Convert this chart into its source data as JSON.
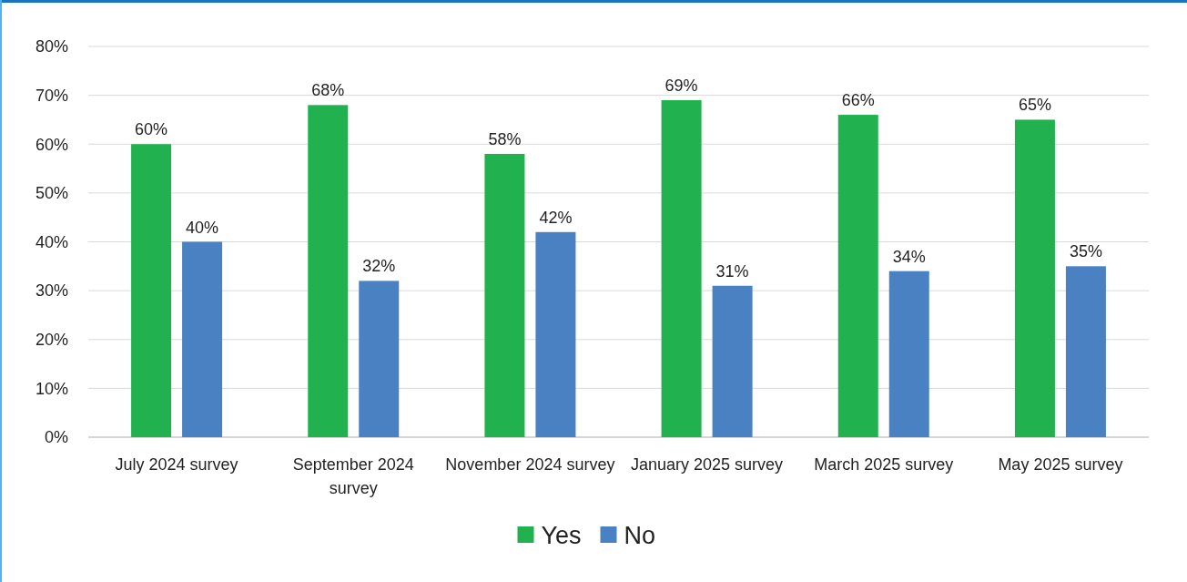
{
  "chart_data": {
    "type": "bar",
    "categories": [
      "July 2024 survey",
      "September 2024 survey",
      "November 2024 survey",
      "January 2025 survey",
      "March 2025 survey",
      "May 2025 survey"
    ],
    "series": [
      {
        "name": "Yes",
        "color": "#21b14e",
        "values": [
          60,
          68,
          58,
          69,
          66,
          65
        ],
        "value_labels": [
          "60%",
          "68%",
          "58%",
          "69%",
          "66%",
          "65%"
        ]
      },
      {
        "name": "No",
        "color": "#4a81c2",
        "values": [
          40,
          32,
          42,
          31,
          34,
          35
        ],
        "value_labels": [
          "40%",
          "32%",
          "42%",
          "31%",
          "34%",
          "35%"
        ]
      }
    ],
    "ylim": [
      0,
      80
    ],
    "yticks": [
      {
        "value": 0,
        "label": "0%"
      },
      {
        "value": 10,
        "label": "10%"
      },
      {
        "value": 20,
        "label": "20%"
      },
      {
        "value": 30,
        "label": "30%"
      },
      {
        "value": 40,
        "label": "40%"
      },
      {
        "value": 50,
        "label": "50%"
      },
      {
        "value": 60,
        "label": "60%"
      },
      {
        "value": 70,
        "label": "70%"
      },
      {
        "value": 80,
        "label": "80%"
      }
    ],
    "grid": "y",
    "legend": "bottom"
  }
}
